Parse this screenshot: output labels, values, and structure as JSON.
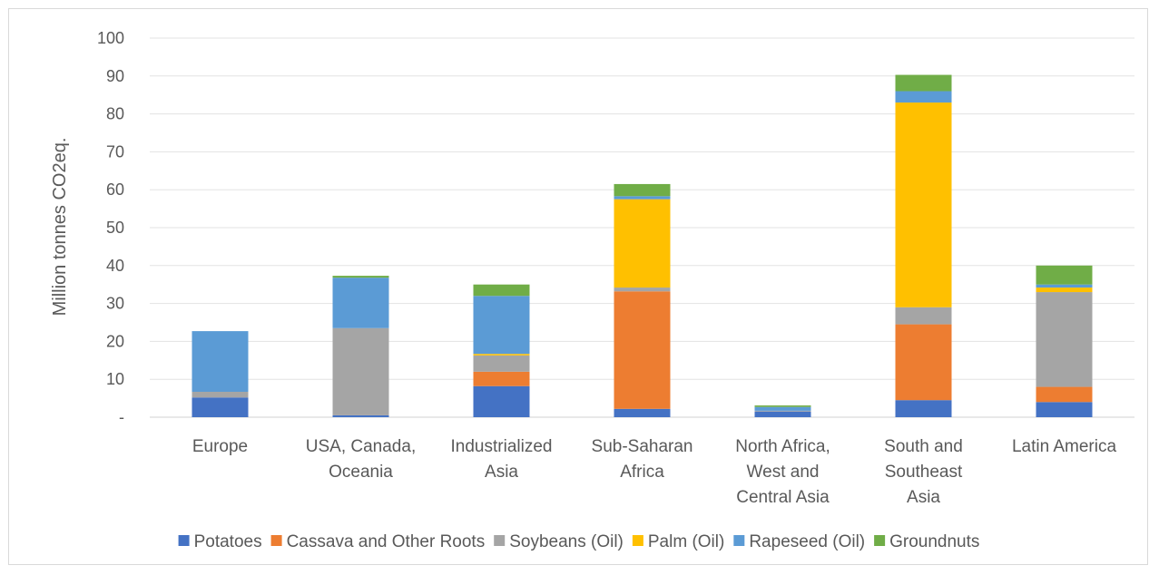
{
  "chart_data": {
    "type": "bar",
    "stacked": true,
    "title": "",
    "xlabel": "",
    "ylabel": "Million tonnes CO2eq.",
    "ylim": [
      0,
      100
    ],
    "yticks": [
      0,
      10,
      20,
      30,
      40,
      50,
      60,
      70,
      80,
      90,
      100
    ],
    "ytick_labels": [
      "-",
      "10",
      "20",
      "30",
      "40",
      "50",
      "60",
      "70",
      "80",
      "90",
      "100"
    ],
    "grid": true,
    "legend_position": "bottom",
    "categories": [
      [
        "Europe"
      ],
      [
        "USA, Canada,",
        "Oceania"
      ],
      [
        "Industrialized",
        "Asia"
      ],
      [
        "Sub-Saharan",
        "Africa"
      ],
      [
        "North Africa,",
        "West and",
        "Central Asia"
      ],
      [
        "South and",
        "Southeast",
        "Asia"
      ],
      [
        "Latin America"
      ]
    ],
    "series": [
      {
        "name": "Potatoes",
        "color": "#4472c4",
        "values": [
          5.2,
          0.5,
          8.2,
          2.2,
          1.5,
          4.5,
          4.0
        ]
      },
      {
        "name": "Cassava and Other Roots",
        "color": "#ed7d31",
        "values": [
          0,
          0,
          3.8,
          31.0,
          0,
          20.0,
          4.0
        ]
      },
      {
        "name": "Soybeans (Oil)",
        "color": "#a5a5a5",
        "values": [
          1.5,
          23.0,
          4.3,
          1.0,
          0.2,
          4.5,
          25.0
        ]
      },
      {
        "name": "Palm (Oil)",
        "color": "#ffc000",
        "values": [
          0,
          0,
          0.4,
          23.3,
          0,
          54.0,
          1.2
        ]
      },
      {
        "name": "Rapeseed (Oil)",
        "color": "#5b9bd5",
        "values": [
          16.0,
          13.3,
          15.3,
          0.8,
          1.0,
          3.0,
          0.8
        ]
      },
      {
        "name": "Groundnuts",
        "color": "#70ad47",
        "values": [
          0,
          0.5,
          3.0,
          3.2,
          0.4,
          4.3,
          5.0
        ]
      }
    ]
  }
}
